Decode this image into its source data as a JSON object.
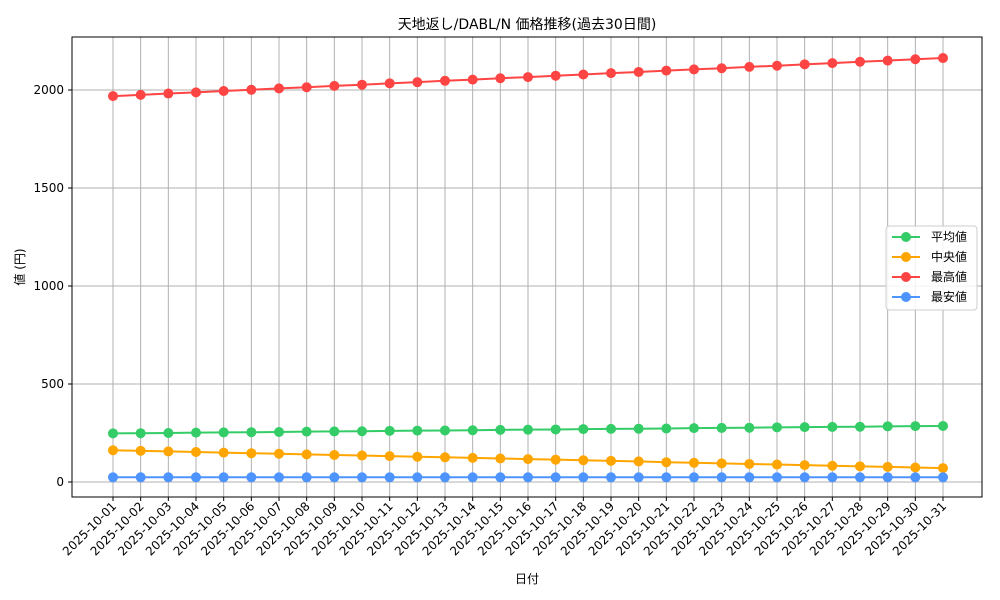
{
  "chart_data": {
    "type": "line",
    "title": "天地返し/DABL/N 価格推移(過去30日間)",
    "xlabel": "日付",
    "ylabel": "値 (円)",
    "ylim": [
      -75,
      2270
    ],
    "yticks": [
      0,
      500,
      1000,
      1500,
      2000
    ],
    "grid": true,
    "legend_position": "center right",
    "categories": [
      "2025-10-01",
      "2025-10-02",
      "2025-10-03",
      "2025-10-04",
      "2025-10-05",
      "2025-10-06",
      "2025-10-07",
      "2025-10-08",
      "2025-10-09",
      "2025-10-10",
      "2025-10-11",
      "2025-10-12",
      "2025-10-13",
      "2025-10-14",
      "2025-10-15",
      "2025-10-16",
      "2025-10-17",
      "2025-10-18",
      "2025-10-19",
      "2025-10-20",
      "2025-10-21",
      "2025-10-22",
      "2025-10-23",
      "2025-10-24",
      "2025-10-25",
      "2025-10-26",
      "2025-10-27",
      "2025-10-28",
      "2025-10-29",
      "2025-10-30",
      "2025-10-31"
    ],
    "series": [
      {
        "name": "平均値",
        "color": "#33cc66",
        "values": [
          248,
          249,
          250,
          252,
          253,
          254,
          255,
          257,
          258,
          259,
          261,
          262,
          263,
          264,
          266,
          267,
          268,
          270,
          271,
          272,
          273,
          275,
          276,
          277,
          279,
          280,
          281,
          282,
          284,
          285,
          286
        ]
      },
      {
        "name": "中央値",
        "color": "#ffa500",
        "values": [
          162,
          159,
          156,
          153,
          150,
          147,
          144,
          141,
          138,
          135,
          132,
          129,
          126,
          123,
          120,
          117,
          114,
          111,
          108,
          105,
          101,
          98,
          95,
          92,
          89,
          86,
          83,
          80,
          77,
          74,
          71
        ]
      },
      {
        "name": "最高値",
        "color": "#ff4444",
        "values": [
          1969,
          1975,
          1982,
          1988,
          1995,
          2001,
          2008,
          2014,
          2021,
          2027,
          2034,
          2040,
          2047,
          2053,
          2060,
          2066,
          2073,
          2079,
          2086,
          2092,
          2099,
          2105,
          2111,
          2118,
          2124,
          2131,
          2137,
          2144,
          2150,
          2157,
          2163
        ]
      },
      {
        "name": "最安値",
        "color": "#4d94ff",
        "values": [
          24,
          24,
          24,
          24,
          24,
          24,
          24,
          24,
          24,
          24,
          24,
          24,
          24,
          24,
          24,
          24,
          24,
          24,
          24,
          24,
          24,
          24,
          24,
          24,
          24,
          24,
          24,
          24,
          24,
          24,
          24
        ]
      }
    ]
  }
}
